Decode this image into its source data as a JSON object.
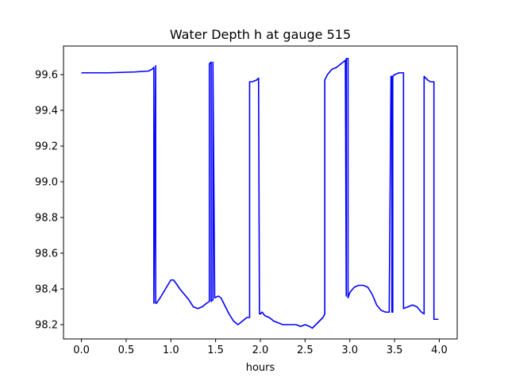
{
  "chart_data": {
    "type": "line",
    "title": "Water Depth h at gauge 515",
    "xlabel": "hours",
    "ylabel": "",
    "xlim": [
      -0.2,
      4.2
    ],
    "ylim": [
      98.12,
      99.76
    ],
    "xticks": [
      0.0,
      0.5,
      1.0,
      1.5,
      2.0,
      2.5,
      3.0,
      3.5,
      4.0
    ],
    "xtick_labels": [
      "0.0",
      "0.5",
      "1.0",
      "1.5",
      "2.0",
      "2.5",
      "3.0",
      "3.5",
      "4.0"
    ],
    "yticks": [
      98.2,
      98.4,
      98.6,
      98.8,
      99.0,
      99.2,
      99.4,
      99.6
    ],
    "ytick_labels": [
      "98.2",
      "98.4",
      "98.6",
      "98.8",
      "99.0",
      "99.2",
      "99.4",
      "99.6"
    ],
    "grid": false,
    "line_color": "#0000ff",
    "series": [
      {
        "x": [
          0.0,
          0.3,
          0.6,
          0.75,
          0.79,
          0.81,
          0.81,
          0.83,
          0.83,
          0.84,
          0.88,
          0.94,
          1.0,
          1.03,
          1.06,
          1.1,
          1.15,
          1.2,
          1.25,
          1.3,
          1.35,
          1.4,
          1.43,
          1.43,
          1.45,
          1.45,
          1.47,
          1.47,
          1.49,
          1.53,
          1.56,
          1.6,
          1.65,
          1.7,
          1.75,
          1.8,
          1.85,
          1.88,
          1.88,
          1.91,
          1.96,
          1.98,
          1.99,
          2.0,
          2.02,
          2.05,
          2.1,
          2.15,
          2.2,
          2.25,
          2.3,
          2.35,
          2.4,
          2.45,
          2.5,
          2.55,
          2.58,
          2.62,
          2.66,
          2.7,
          2.72,
          2.72,
          2.75,
          2.8,
          2.85,
          2.9,
          2.95,
          2.96,
          2.96,
          2.98,
          2.98,
          3.0,
          3.05,
          3.1,
          3.15,
          3.2,
          3.25,
          3.3,
          3.35,
          3.4,
          3.44,
          3.46,
          3.47,
          3.47,
          3.48,
          3.48,
          3.5,
          3.55,
          3.6,
          3.6,
          3.65,
          3.7,
          3.75,
          3.8,
          3.83,
          3.83,
          3.87,
          3.9,
          3.94,
          3.94,
          3.96,
          3.97,
          3.99
        ],
        "y": [
          99.61,
          99.61,
          99.615,
          99.62,
          99.63,
          99.64,
          98.32,
          99.65,
          98.32,
          98.32,
          98.35,
          98.4,
          98.45,
          98.45,
          98.43,
          98.4,
          98.37,
          98.34,
          98.3,
          98.29,
          98.3,
          98.32,
          98.33,
          99.66,
          99.67,
          98.33,
          98.34,
          99.67,
          98.35,
          98.36,
          98.35,
          98.31,
          98.26,
          98.22,
          98.2,
          98.22,
          98.24,
          98.24,
          99.56,
          99.56,
          99.57,
          99.58,
          98.26,
          98.26,
          98.27,
          98.25,
          98.24,
          98.22,
          98.21,
          98.2,
          98.2,
          98.2,
          98.2,
          98.19,
          98.2,
          98.19,
          98.18,
          98.2,
          98.22,
          98.24,
          98.26,
          99.57,
          99.6,
          99.63,
          99.64,
          99.66,
          99.68,
          98.36,
          99.69,
          99.69,
          98.35,
          98.38,
          98.41,
          98.42,
          98.42,
          98.41,
          98.37,
          98.31,
          98.28,
          98.27,
          98.27,
          99.59,
          99.59,
          98.27,
          98.27,
          99.59,
          99.6,
          99.61,
          99.61,
          98.29,
          98.3,
          98.31,
          98.3,
          98.27,
          98.26,
          99.59,
          99.57,
          99.56,
          99.56,
          98.23,
          98.23,
          98.23,
          98.23
        ]
      }
    ]
  }
}
